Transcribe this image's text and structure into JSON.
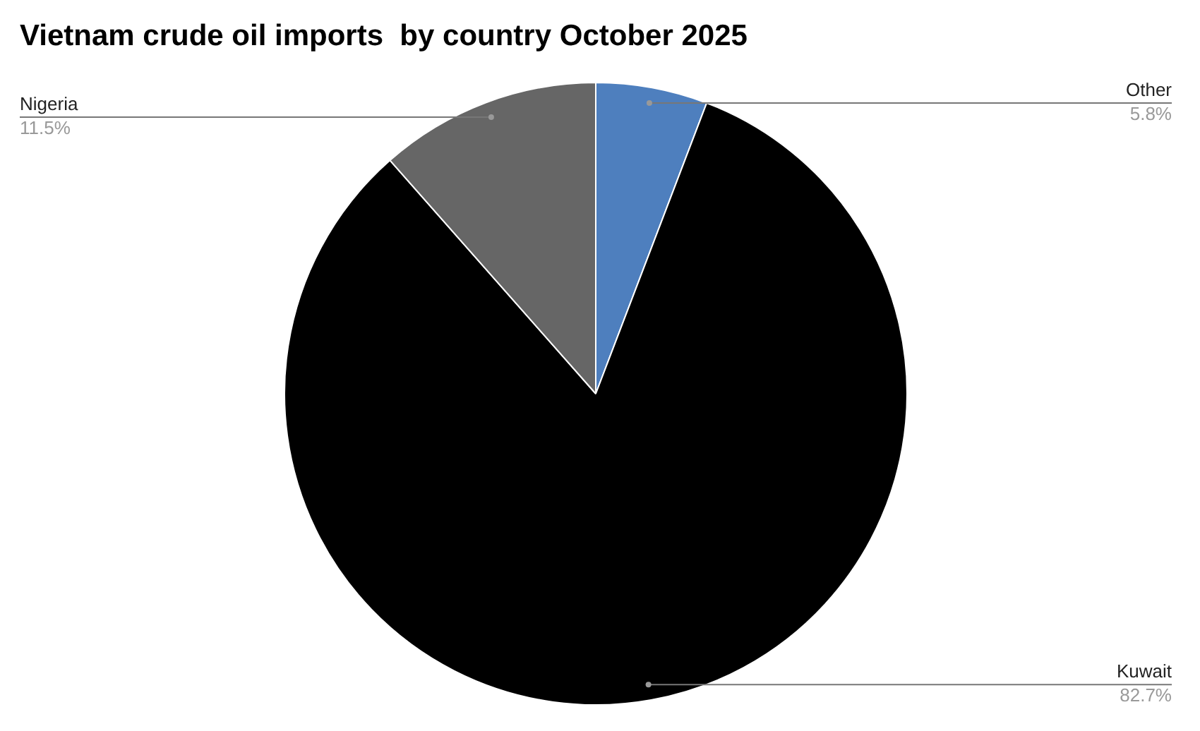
{
  "chart_data": {
    "type": "pie",
    "title": "Vietnam crude oil imports  by country October 2025",
    "categories": [
      "Other",
      "Kuwait",
      "Nigeria"
    ],
    "values": [
      5.8,
      82.7,
      11.5
    ],
    "colors": [
      "#4e7fbe",
      "#000000",
      "#666666"
    ],
    "value_labels": [
      "5.8%",
      "82.7%",
      "11.5%"
    ],
    "legend": false
  }
}
